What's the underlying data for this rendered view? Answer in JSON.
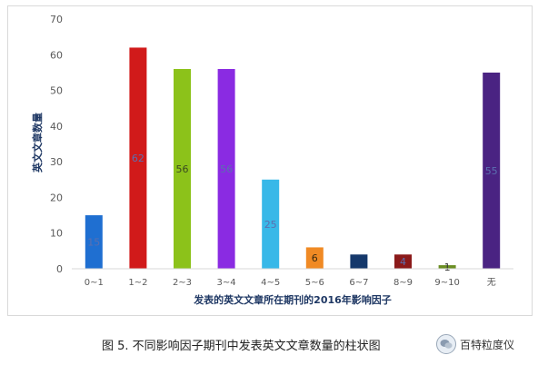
{
  "chart_data": {
    "type": "bar",
    "categories": [
      "0~1",
      "1~2",
      "2~3",
      "3~4",
      "4~5",
      "5~6",
      "6~7",
      "8~9",
      "9~10",
      "无"
    ],
    "values": [
      15,
      62,
      56,
      56,
      25,
      6,
      4,
      4,
      1,
      55
    ],
    "data_labels": [
      "15",
      "62",
      "56",
      "56",
      "25",
      "6",
      "",
      "4",
      "1",
      "55"
    ],
    "bar_colors": [
      "#1f6fd1",
      "#d11a1a",
      "#8cc21a",
      "#8a2be2",
      "#38b8e8",
      "#f08a24",
      "#15386b",
      "#8b1a1a",
      "#6b8e23",
      "#4a2382"
    ],
    "label_colors": [
      "#5b6fb0",
      "#5b6fb0",
      "#3a4a20",
      "#5b6fb0",
      "#5b6fb0",
      "#3a2a10",
      "#5b6fb0",
      "#5b6fb0",
      "#333333",
      "#5b6fb0"
    ],
    "title": "",
    "xlabel": "发表的英文文章所在期刊的2016年影响因子",
    "ylabel": "英文文章数量",
    "ylim": [
      0,
      70
    ],
    "yticks": [
      0,
      10,
      20,
      30,
      40,
      50,
      60,
      70
    ],
    "grid": false,
    "legend": "none"
  },
  "caption": "图 5. 不同影响因子期刊中发表英文文章数量的柱状图",
  "watermark": {
    "text": "百特粒度仪",
    "icon": "wechat-icon"
  }
}
